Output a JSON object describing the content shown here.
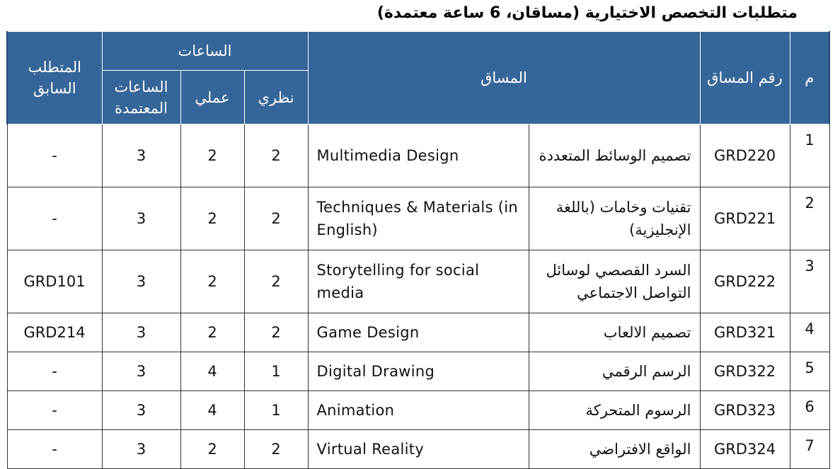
{
  "title": "متطلبات التخصص الاختيارية (مساقان، 6 ساعة معتمدة)",
  "colors": {
    "header_bg": "#356699",
    "header_text": "#ffffff"
  },
  "headers": {
    "index": "م",
    "code": "رقم المساق",
    "course": "المساق",
    "hours": "الساعات",
    "theory": "نظري",
    "practical": "عملي",
    "credit": "الساعات المعتمدة",
    "prereq": "المتطلب السابق"
  },
  "rows": [
    {
      "m": "1",
      "code": "GRD220",
      "ar": "تصميم الوسائط المتعددة",
      "en": "Multimedia Design",
      "theory": "2",
      "practical": "2",
      "credit": "3",
      "prereq": "-"
    },
    {
      "m": "2",
      "code": "GRD221",
      "ar": "تقنيات وخامات (باللغة الإنجليزية)",
      "en": "Techniques & Materials (in English)",
      "theory": "2",
      "practical": "2",
      "credit": "3",
      "prereq": "-"
    },
    {
      "m": "3",
      "code": "GRD222",
      "ar": "السرد القصصي لوسائل التواصل الاجتماعي",
      "en": "Storytelling for social media",
      "theory": "2",
      "practical": "2",
      "credit": "3",
      "prereq": "GRD101"
    },
    {
      "m": "4",
      "code": "GRD321",
      "ar": "تصميم الالعاب",
      "en": "Game Design",
      "theory": "2",
      "practical": "2",
      "credit": "3",
      "prereq": "GRD214"
    },
    {
      "m": "5",
      "code": "GRD322",
      "ar": "الرسم الرقمي",
      "en": "Digital Drawing",
      "theory": "1",
      "practical": "4",
      "credit": "3",
      "prereq": "-"
    },
    {
      "m": "6",
      "code": "GRD323",
      "ar": "الرسوم المتحركة",
      "en": "Animation",
      "theory": "1",
      "practical": "4",
      "credit": "3",
      "prereq": "-"
    },
    {
      "m": "7",
      "code": "GRD324",
      "ar": "الواقع الافتراضي",
      "en": "Virtual Reality",
      "theory": "2",
      "practical": "2",
      "credit": "3",
      "prereq": "-"
    }
  ]
}
